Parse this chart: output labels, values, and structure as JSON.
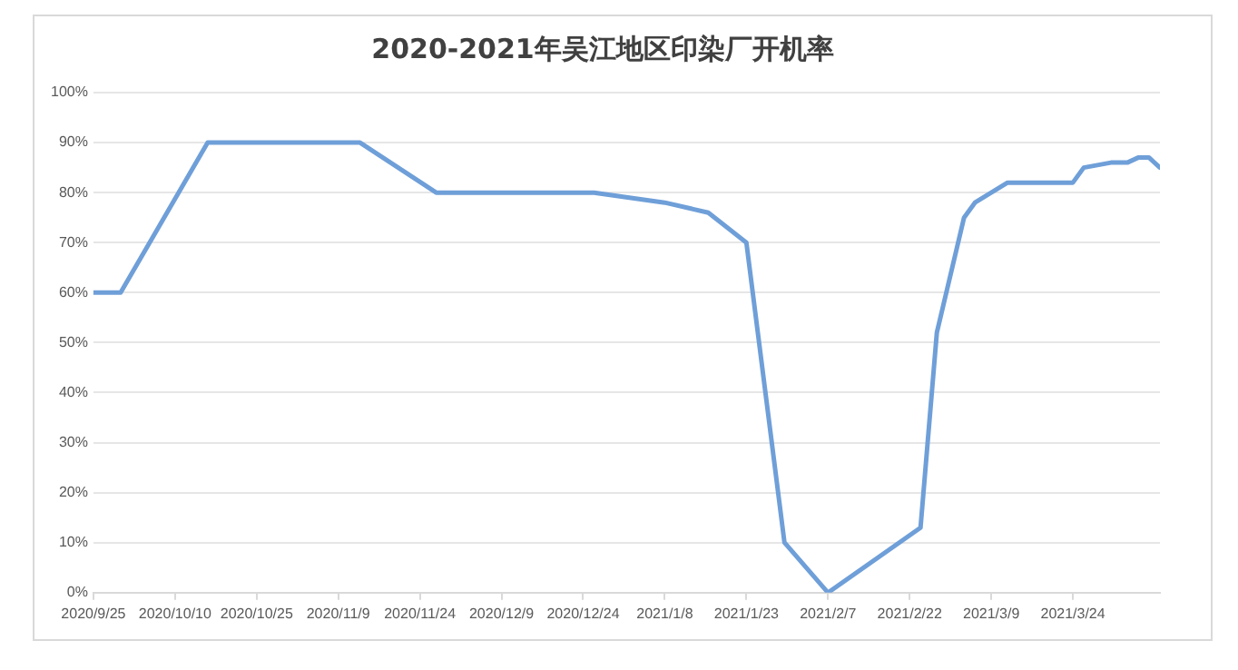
{
  "chart_data": {
    "type": "line",
    "title": "2020-2021年吴江地区印染厂开机率",
    "x": [
      "2020-09-25",
      "2020-09-30",
      "2020-10-16",
      "2020-11-13",
      "2020-11-27",
      "2020-12-26",
      "2021-01-08",
      "2021-01-16",
      "2021-01-23",
      "2021-01-30",
      "2021-02-07",
      "2021-02-24",
      "2021-02-27",
      "2021-03-04",
      "2021-03-06",
      "2021-03-12",
      "2021-03-24",
      "2021-03-26",
      "2021-03-31",
      "2021-04-03",
      "2021-04-05",
      "2021-04-07",
      "2021-04-09"
    ],
    "series": [
      {
        "color": "#6f9fd8",
        "values": [
          60,
          60,
          90,
          90,
          80,
          80,
          78,
          76,
          70,
          10,
          0,
          13,
          52,
          75,
          78,
          82,
          82,
          85,
          86,
          86,
          87,
          87,
          85
        ]
      }
    ],
    "xlim": [
      "2020-09-25",
      "2021-04-09"
    ],
    "xticks": [
      {
        "value": "2020-09-25",
        "label": "2020/9/25"
      },
      {
        "value": "2020-10-10",
        "label": "2020/10/10"
      },
      {
        "value": "2020-10-25",
        "label": "2020/10/25"
      },
      {
        "value": "2020-11-09",
        "label": "2020/11/9"
      },
      {
        "value": "2020-11-24",
        "label": "2020/11/24"
      },
      {
        "value": "2020-12-09",
        "label": "2020/12/9"
      },
      {
        "value": "2020-12-24",
        "label": "2020/12/24"
      },
      {
        "value": "2021-01-08",
        "label": "2021/1/8"
      },
      {
        "value": "2021-01-23",
        "label": "2021/1/23"
      },
      {
        "value": "2021-02-07",
        "label": "2021/2/7"
      },
      {
        "value": "2021-02-22",
        "label": "2021/2/22"
      },
      {
        "value": "2021-03-09",
        "label": "2021/3/9"
      },
      {
        "value": "2021-03-24",
        "label": "2021/3/24"
      }
    ],
    "ylim": [
      0,
      100
    ],
    "yticks": [
      {
        "value": 0,
        "label": "0%"
      },
      {
        "value": 10,
        "label": "10%"
      },
      {
        "value": 20,
        "label": "20%"
      },
      {
        "value": 30,
        "label": "30%"
      },
      {
        "value": 40,
        "label": "40%"
      },
      {
        "value": 50,
        "label": "50%"
      },
      {
        "value": 60,
        "label": "60%"
      },
      {
        "value": 70,
        "label": "70%"
      },
      {
        "value": 80,
        "label": "80%"
      },
      {
        "value": 90,
        "label": "90%"
      },
      {
        "value": 100,
        "label": "100%"
      }
    ],
    "grid": "y",
    "marker": "none",
    "line_style": "solid",
    "legend": false
  }
}
